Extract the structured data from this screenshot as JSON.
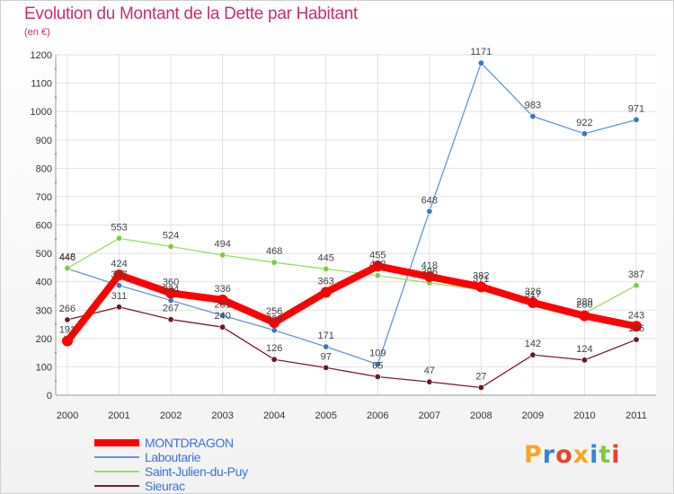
{
  "header": {
    "title": "Evolution du Montant de la Dette par Habitant",
    "subtitle": "(en €)"
  },
  "brand": {
    "logo_text": "Proxiti"
  },
  "chart_data": {
    "type": "line",
    "title": "Evolution du Montant de la Dette par Habitant",
    "subtitle": "(en €)",
    "xlabel": "",
    "ylabel": "",
    "x": [
      "2000",
      "2001",
      "2002",
      "2003",
      "2004",
      "2005",
      "2006",
      "2007",
      "2008",
      "2009",
      "2010",
      "2011"
    ],
    "ylim": [
      0,
      1200
    ],
    "yticks": [
      0,
      100,
      200,
      300,
      400,
      500,
      600,
      700,
      800,
      900,
      1000,
      1100,
      1200
    ],
    "grid": true,
    "legend_position": "bottom-left",
    "series": [
      {
        "name": "MONTDRAGON",
        "color": "#ff0000",
        "emphasis": true,
        "values": [
          191,
          424,
          360,
          336,
          256,
          363,
          455,
          418,
          382,
          326,
          280,
          243
        ]
      },
      {
        "name": "Laboutarie",
        "color": "#5b9bd5",
        "point_color": "#3a78c4",
        "values": [
          446,
          387,
          334,
          281,
          229,
          171,
          109,
          648,
          1171,
          983,
          922,
          971
        ]
      },
      {
        "name": "Saint-Julien-du-Puy",
        "color": "#99dd66",
        "point_color": "#7ccc3c",
        "values": [
          448,
          553,
          524,
          494,
          468,
          445,
          422,
          396,
          371,
          317,
          289,
          387
        ]
      },
      {
        "name": "Sieurac",
        "color": "#7a1f2b",
        "point_color": "#6a1a24",
        "values": [
          266,
          311,
          267,
          240,
          126,
          97,
          65,
          47,
          27,
          142,
          124,
          196
        ]
      }
    ]
  }
}
